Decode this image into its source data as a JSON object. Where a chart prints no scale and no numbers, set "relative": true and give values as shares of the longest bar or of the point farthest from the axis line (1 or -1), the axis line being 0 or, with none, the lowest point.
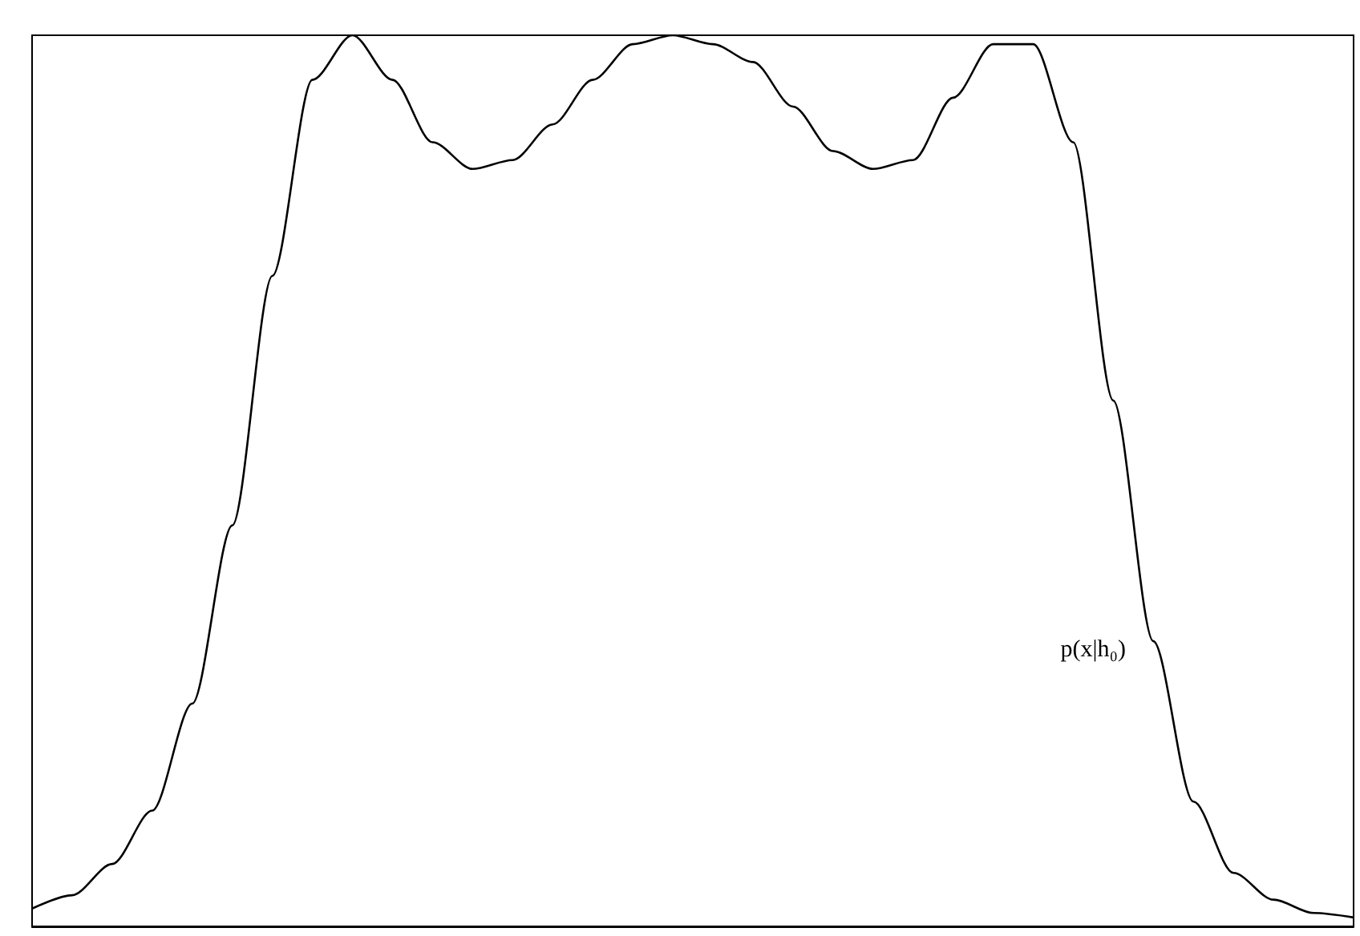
{
  "chart_data": {
    "type": "line",
    "relative": true,
    "categories": [
      null,
      null,
      null,
      null,
      null,
      null,
      null,
      null,
      null,
      null,
      null,
      null,
      null,
      null,
      null,
      null,
      null,
      null,
      null,
      null,
      null,
      null,
      null,
      null,
      null,
      null,
      null,
      null,
      null,
      null,
      null,
      null,
      null,
      null
    ],
    "series": [
      {
        "color": "#000000",
        "values": [
          0.02,
          0.035,
          0.07,
          0.13,
          0.25,
          0.45,
          0.73,
          0.95,
          1.0,
          0.95,
          0.88,
          0.85,
          0.86,
          0.9,
          0.95,
          0.99,
          1.0,
          0.99,
          0.97,
          0.92,
          0.87,
          0.85,
          0.86,
          0.93,
          0.99,
          0.99,
          0.88,
          0.59,
          0.32,
          0.14,
          0.06,
          0.03,
          0.015,
          0.01
        ]
      }
    ],
    "annotations": [
      "p(x|h₀)"
    ],
    "marker": "none",
    "line_style": "solid",
    "grid": false,
    "tick_labels": false
  }
}
